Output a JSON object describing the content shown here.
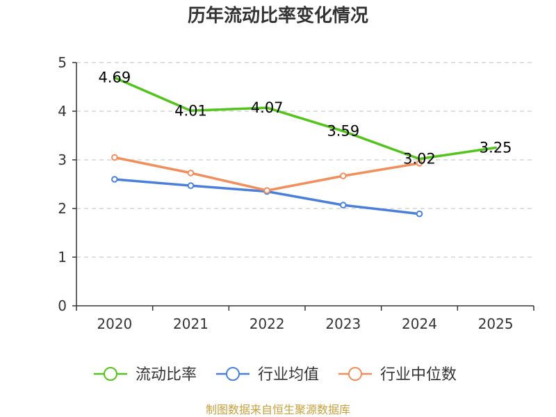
{
  "chart_data": {
    "type": "line",
    "title": "历年流动比率变化情况",
    "categories": [
      "2020",
      "2021",
      "2022",
      "2023",
      "2024",
      "2025"
    ],
    "ylim": [
      0,
      5
    ],
    "yticks": [
      "0",
      "1",
      "2",
      "3",
      "4",
      "5"
    ],
    "grid": true,
    "legend_position": "bottom",
    "series": [
      {
        "name": "流动比率",
        "color": "#52c41a",
        "values": [
          4.69,
          4.01,
          4.07,
          3.59,
          3.02,
          3.25
        ],
        "labels": [
          "4.69",
          "4.01",
          "4.07",
          "3.59",
          "3.02",
          "3.25"
        ],
        "markers": false
      },
      {
        "name": "行业均值",
        "color": "#4a7fdb",
        "values": [
          2.6,
          2.47,
          2.35,
          2.07,
          1.89,
          null
        ],
        "markers": true
      },
      {
        "name": "行业中位数",
        "color": "#f28e5c",
        "values": [
          3.05,
          2.73,
          2.37,
          2.67,
          2.93,
          null
        ],
        "markers": true
      }
    ],
    "source": "制图数据来自恒生聚源数据库"
  }
}
